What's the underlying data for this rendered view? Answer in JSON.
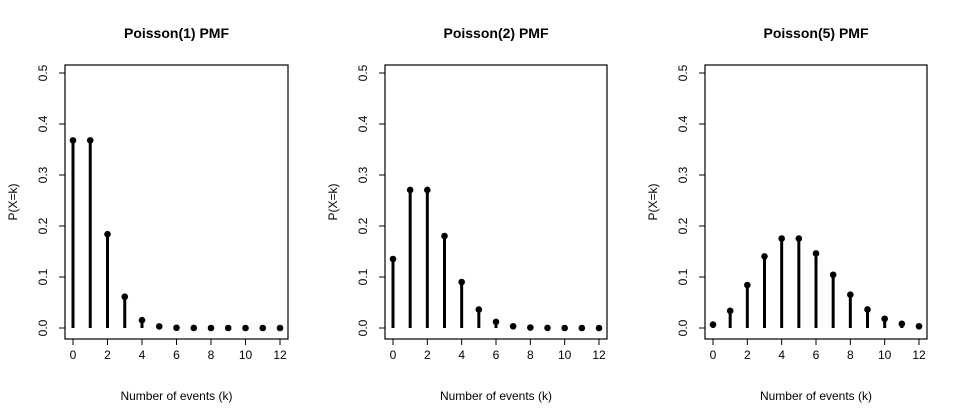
{
  "chart_data": [
    {
      "type": "bar",
      "style": "lollipop",
      "title": "Poisson(1) PMF",
      "xlabel": "Number of events (k)",
      "ylabel": "P(X=k)",
      "x": [
        0,
        1,
        2,
        3,
        4,
        5,
        6,
        7,
        8,
        9,
        10,
        11,
        12
      ],
      "values": [
        0.3679,
        0.3679,
        0.1839,
        0.0613,
        0.0153,
        0.0031,
        0.0005,
        0.0001,
        0.0,
        0.0,
        0.0,
        0.0,
        0.0
      ],
      "xlim": [
        0,
        12
      ],
      "ylim": [
        0,
        0.5
      ],
      "xticks": [
        0,
        2,
        4,
        6,
        8,
        10,
        12
      ],
      "yticks": [
        0.0,
        0.1,
        0.2,
        0.3,
        0.4,
        0.5
      ],
      "xtick_labels": [
        "0",
        "2",
        "4",
        "6",
        "8",
        "10",
        "12"
      ],
      "ytick_labels": [
        "0.0",
        "0.1",
        "0.2",
        "0.3",
        "0.4",
        "0.5"
      ],
      "grid": false
    },
    {
      "type": "bar",
      "style": "lollipop",
      "title": "Poisson(2) PMF",
      "xlabel": "Number of events (k)",
      "ylabel": "P(X=k)",
      "x": [
        0,
        1,
        2,
        3,
        4,
        5,
        6,
        7,
        8,
        9,
        10,
        11,
        12
      ],
      "values": [
        0.1353,
        0.2707,
        0.2707,
        0.1804,
        0.0902,
        0.0361,
        0.012,
        0.0034,
        0.0009,
        0.0002,
        0.0,
        0.0,
        0.0
      ],
      "xlim": [
        0,
        12
      ],
      "ylim": [
        0,
        0.5
      ],
      "xticks": [
        0,
        2,
        4,
        6,
        8,
        10,
        12
      ],
      "yticks": [
        0.0,
        0.1,
        0.2,
        0.3,
        0.4,
        0.5
      ],
      "xtick_labels": [
        "0",
        "2",
        "4",
        "6",
        "8",
        "10",
        "12"
      ],
      "ytick_labels": [
        "0.0",
        "0.1",
        "0.2",
        "0.3",
        "0.4",
        "0.5"
      ],
      "grid": false
    },
    {
      "type": "bar",
      "style": "lollipop",
      "title": "Poisson(5) PMF",
      "xlabel": "Number of events (k)",
      "ylabel": "P(X=k)",
      "x": [
        0,
        1,
        2,
        3,
        4,
        5,
        6,
        7,
        8,
        9,
        10,
        11,
        12
      ],
      "values": [
        0.0067,
        0.0337,
        0.0842,
        0.1404,
        0.1755,
        0.1755,
        0.1462,
        0.1044,
        0.0653,
        0.0363,
        0.0181,
        0.0082,
        0.0034
      ],
      "xlim": [
        0,
        12
      ],
      "ylim": [
        0,
        0.5
      ],
      "xticks": [
        0,
        2,
        4,
        6,
        8,
        10,
        12
      ],
      "yticks": [
        0.0,
        0.1,
        0.2,
        0.3,
        0.4,
        0.5
      ],
      "xtick_labels": [
        "0",
        "2",
        "4",
        "6",
        "8",
        "10",
        "12"
      ],
      "ytick_labels": [
        "0.0",
        "0.1",
        "0.2",
        "0.3",
        "0.4",
        "0.5"
      ],
      "grid": false
    }
  ]
}
